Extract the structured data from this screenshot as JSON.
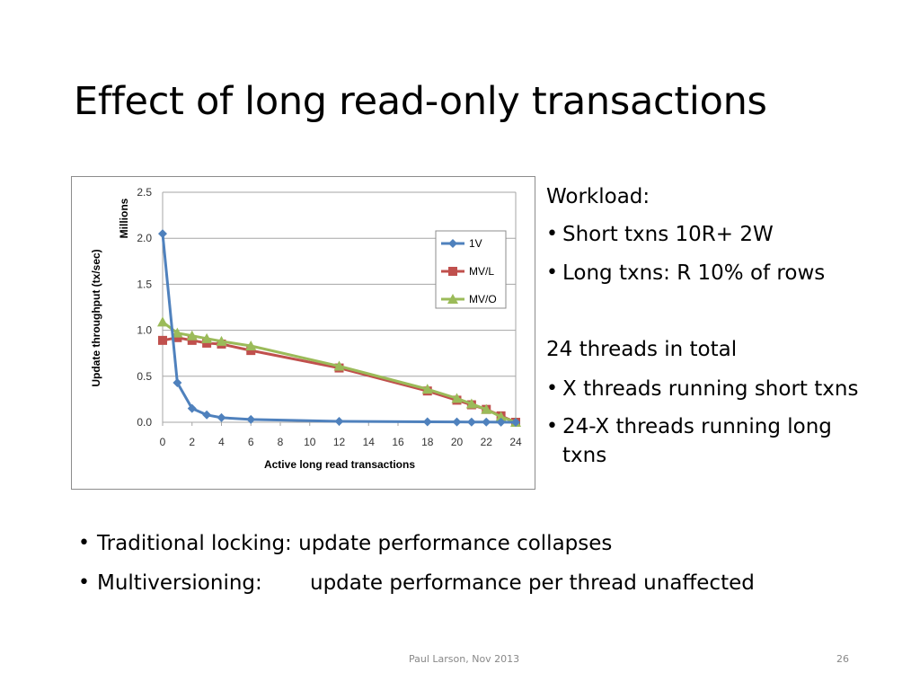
{
  "slide": {
    "title": "Effect of long read-only transactions",
    "footer_author": "Paul Larson, Nov 2013",
    "page_number": "26"
  },
  "right_panel": {
    "workload_heading": "Workload:",
    "workload_bullets": [
      "Short txns 10R+ 2W",
      "Long txns: R 10% of rows"
    ],
    "threads_heading": "24 threads in total",
    "thread_bullets": [
      "X threads running short txns",
      "24-X threads running long",
      "txns"
    ]
  },
  "bottom_bullets": [
    {
      "label": "Traditional locking: update performance collapses",
      "detail": ""
    },
    {
      "label": "Multiversioning:",
      "detail": "update performance per thread unaffected"
    }
  ],
  "chart_data": {
    "type": "line",
    "title": "",
    "xlabel": "Active long read transactions",
    "ylabel": "Update throughput (tx/sec)",
    "yunit_label": "Millions",
    "xlim": [
      0,
      24
    ],
    "ylim": [
      0,
      2.5
    ],
    "xticks": [
      "0",
      "2",
      "4",
      "6",
      "8",
      "10",
      "12",
      "14",
      "16",
      "18",
      "20",
      "22",
      "24"
    ],
    "yticks": [
      "0.0",
      "0.5",
      "1.0",
      "1.5",
      "2.0",
      "2.5"
    ],
    "grid": "horizontal",
    "legend_position": "top-right",
    "series": [
      {
        "name": "1V",
        "color": "#4f81bd",
        "marker": "diamond",
        "x": [
          0,
          1,
          2,
          3,
          4,
          6,
          12,
          18,
          20,
          21,
          22,
          23,
          24
        ],
        "y": [
          2.05,
          0.43,
          0.15,
          0.08,
          0.05,
          0.03,
          0.01,
          0.005,
          0.004,
          0.003,
          0.002,
          0.001,
          0.0
        ]
      },
      {
        "name": "MV/L",
        "color": "#c0504d",
        "marker": "square",
        "x": [
          0,
          1,
          2,
          3,
          4,
          6,
          12,
          18,
          20,
          21,
          22,
          23,
          24
        ],
        "y": [
          0.89,
          0.92,
          0.89,
          0.86,
          0.85,
          0.78,
          0.59,
          0.34,
          0.24,
          0.19,
          0.14,
          0.07,
          0.0
        ]
      },
      {
        "name": "MV/O",
        "color": "#9bbb59",
        "marker": "triangle",
        "x": [
          0,
          1,
          2,
          3,
          4,
          6,
          12,
          18,
          20,
          21,
          22,
          23,
          24
        ],
        "y": [
          1.09,
          0.97,
          0.94,
          0.91,
          0.88,
          0.83,
          0.61,
          0.36,
          0.26,
          0.2,
          0.14,
          0.06,
          0.0
        ]
      }
    ]
  }
}
